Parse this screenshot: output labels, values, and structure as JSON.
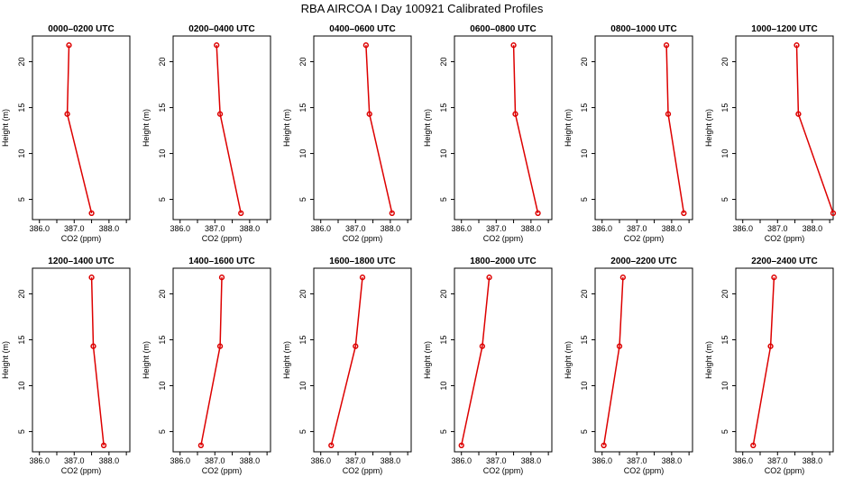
{
  "figure": {
    "title": "RBA AIRCOA I  Day 100921  Calibrated Profiles"
  },
  "colors": {
    "series": "#dd0000",
    "axes": "#000000",
    "background": "#ffffff"
  },
  "chart_data": [
    {
      "type": "line",
      "title": "0000–0200 UTC",
      "xlabel": "CO2 (ppm)",
      "ylabel": "Height (m)",
      "xlim": [
        385.8,
        388.6
      ],
      "ylim": [
        2.8,
        22.8
      ],
      "xticks": [
        386.0,
        387.0,
        388.0
      ],
      "xtick_labels": [
        "386.0",
        "387.0",
        "388.0"
      ],
      "yticks": [
        5,
        10,
        15,
        20
      ],
      "ytick_labels": [
        "5",
        "10",
        "15",
        "20"
      ],
      "series": [
        {
          "x": [
            387.5,
            386.8,
            386.85
          ],
          "y": [
            3.5,
            14.3,
            21.8
          ]
        }
      ]
    },
    {
      "type": "line",
      "title": "0200–0400 UTC",
      "xlabel": "CO2 (ppm)",
      "ylabel": "Height (m)",
      "xlim": [
        385.8,
        388.6
      ],
      "ylim": [
        2.8,
        22.8
      ],
      "xticks": [
        386.0,
        387.0,
        388.0
      ],
      "xtick_labels": [
        "386.0",
        "387.0",
        "388.0"
      ],
      "yticks": [
        5,
        10,
        15,
        20
      ],
      "ytick_labels": [
        "5",
        "10",
        "15",
        "20"
      ],
      "series": [
        {
          "x": [
            387.75,
            387.15,
            387.05
          ],
          "y": [
            3.5,
            14.3,
            21.8
          ]
        }
      ]
    },
    {
      "type": "line",
      "title": "0400–0600 UTC",
      "xlabel": "CO2 (ppm)",
      "ylabel": "Height (m)",
      "xlim": [
        385.8,
        388.6
      ],
      "ylim": [
        2.8,
        22.8
      ],
      "xticks": [
        386.0,
        387.0,
        388.0
      ],
      "xtick_labels": [
        "386.0",
        "387.0",
        "388.0"
      ],
      "yticks": [
        5,
        10,
        15,
        20
      ],
      "ytick_labels": [
        "5",
        "10",
        "15",
        "20"
      ],
      "series": [
        {
          "x": [
            388.05,
            387.4,
            387.3
          ],
          "y": [
            3.5,
            14.3,
            21.8
          ]
        }
      ]
    },
    {
      "type": "line",
      "title": "0600–0800 UTC",
      "xlabel": "CO2 (ppm)",
      "ylabel": "Height (m)",
      "xlim": [
        385.8,
        388.6
      ],
      "ylim": [
        2.8,
        22.8
      ],
      "xticks": [
        386.0,
        387.0,
        388.0
      ],
      "xtick_labels": [
        "386.0",
        "387.0",
        "388.0"
      ],
      "yticks": [
        5,
        10,
        15,
        20
      ],
      "ytick_labels": [
        "5",
        "10",
        "15",
        "20"
      ],
      "series": [
        {
          "x": [
            388.2,
            387.55,
            387.5
          ],
          "y": [
            3.5,
            14.3,
            21.8
          ]
        }
      ]
    },
    {
      "type": "line",
      "title": "0800–1000 UTC",
      "xlabel": "CO2 (ppm)",
      "ylabel": "Height (m)",
      "xlim": [
        385.8,
        388.6
      ],
      "ylim": [
        2.8,
        22.8
      ],
      "xticks": [
        386.0,
        387.0,
        388.0
      ],
      "xtick_labels": [
        "386.0",
        "387.0",
        "388.0"
      ],
      "yticks": [
        5,
        10,
        15,
        20
      ],
      "ytick_labels": [
        "5",
        "10",
        "15",
        "20"
      ],
      "series": [
        {
          "x": [
            388.35,
            387.9,
            387.85
          ],
          "y": [
            3.5,
            14.3,
            21.8
          ]
        }
      ]
    },
    {
      "type": "line",
      "title": "1000–1200 UTC",
      "xlabel": "CO2 (ppm)",
      "ylabel": "Height (m)",
      "xlim": [
        385.8,
        388.6
      ],
      "ylim": [
        2.8,
        22.8
      ],
      "xticks": [
        386.0,
        387.0,
        388.0
      ],
      "xtick_labels": [
        "386.0",
        "387.0",
        "388.0"
      ],
      "yticks": [
        5,
        10,
        15,
        20
      ],
      "ytick_labels": [
        "5",
        "10",
        "15",
        "20"
      ],
      "series": [
        {
          "x": [
            388.6,
            387.6,
            387.55
          ],
          "y": [
            3.5,
            14.3,
            21.8
          ]
        }
      ]
    },
    {
      "type": "line",
      "title": "1200–1400 UTC",
      "xlabel": "CO2 (ppm)",
      "ylabel": "Height (m)",
      "xlim": [
        385.8,
        388.6
      ],
      "ylim": [
        2.8,
        22.8
      ],
      "xticks": [
        386.0,
        387.0,
        388.0
      ],
      "xtick_labels": [
        "386.0",
        "387.0",
        "388.0"
      ],
      "yticks": [
        5,
        10,
        15,
        20
      ],
      "ytick_labels": [
        "5",
        "10",
        "15",
        "20"
      ],
      "series": [
        {
          "x": [
            387.85,
            387.55,
            387.5
          ],
          "y": [
            3.5,
            14.3,
            21.8
          ]
        }
      ]
    },
    {
      "type": "line",
      "title": "1400–1600 UTC",
      "xlabel": "CO2 (ppm)",
      "ylabel": "Height (m)",
      "xlim": [
        385.8,
        388.6
      ],
      "ylim": [
        2.8,
        22.8
      ],
      "xticks": [
        386.0,
        387.0,
        388.0
      ],
      "xtick_labels": [
        "386.0",
        "387.0",
        "388.0"
      ],
      "yticks": [
        5,
        10,
        15,
        20
      ],
      "ytick_labels": [
        "5",
        "10",
        "15",
        "20"
      ],
      "series": [
        {
          "x": [
            386.6,
            387.15,
            387.2
          ],
          "y": [
            3.5,
            14.3,
            21.8
          ]
        }
      ]
    },
    {
      "type": "line",
      "title": "1600–1800 UTC",
      "xlabel": "CO2 (ppm)",
      "ylabel": "Height (m)",
      "xlim": [
        385.8,
        388.6
      ],
      "ylim": [
        2.8,
        22.8
      ],
      "xticks": [
        386.0,
        387.0,
        388.0
      ],
      "xtick_labels": [
        "386.0",
        "387.0",
        "388.0"
      ],
      "yticks": [
        5,
        10,
        15,
        20
      ],
      "ytick_labels": [
        "5",
        "10",
        "15",
        "20"
      ],
      "series": [
        {
          "x": [
            386.3,
            387.0,
            387.2
          ],
          "y": [
            3.5,
            14.3,
            21.8
          ]
        }
      ]
    },
    {
      "type": "line",
      "title": "1800–2000 UTC",
      "xlabel": "CO2 (ppm)",
      "ylabel": "Height (m)",
      "xlim": [
        385.8,
        388.6
      ],
      "ylim": [
        2.8,
        22.8
      ],
      "xticks": [
        386.0,
        387.0,
        388.0
      ],
      "xtick_labels": [
        "386.0",
        "387.0",
        "388.0"
      ],
      "yticks": [
        5,
        10,
        15,
        20
      ],
      "ytick_labels": [
        "5",
        "10",
        "15",
        "20"
      ],
      "series": [
        {
          "x": [
            386.0,
            386.6,
            386.8
          ],
          "y": [
            3.5,
            14.3,
            21.8
          ]
        }
      ]
    },
    {
      "type": "line",
      "title": "2000–2200 UTC",
      "xlabel": "CO2 (ppm)",
      "ylabel": "Height (m)",
      "xlim": [
        385.8,
        388.6
      ],
      "ylim": [
        2.8,
        22.8
      ],
      "xticks": [
        386.0,
        387.0,
        388.0
      ],
      "xtick_labels": [
        "386.0",
        "387.0",
        "388.0"
      ],
      "yticks": [
        5,
        10,
        15,
        20
      ],
      "ytick_labels": [
        "5",
        "10",
        "15",
        "20"
      ],
      "series": [
        {
          "x": [
            386.05,
            386.5,
            386.6
          ],
          "y": [
            3.5,
            14.3,
            21.8
          ]
        }
      ]
    },
    {
      "type": "line",
      "title": "2200–2400 UTC",
      "xlabel": "CO2 (ppm)",
      "ylabel": "Height (m)",
      "xlim": [
        385.8,
        388.6
      ],
      "ylim": [
        2.8,
        22.8
      ],
      "xticks": [
        386.0,
        387.0,
        388.0
      ],
      "xtick_labels": [
        "386.0",
        "387.0",
        "388.0"
      ],
      "yticks": [
        5,
        10,
        15,
        20
      ],
      "ytick_labels": [
        "5",
        "10",
        "15",
        "20"
      ],
      "series": [
        {
          "x": [
            386.3,
            386.8,
            386.9
          ],
          "y": [
            3.5,
            14.3,
            21.8
          ]
        }
      ]
    }
  ]
}
